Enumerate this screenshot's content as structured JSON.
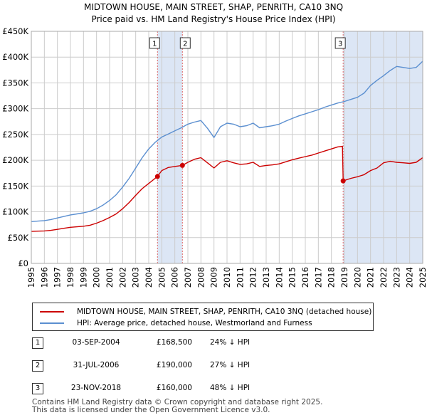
{
  "title": {
    "line1": "MIDTOWN HOUSE, MAIN STREET, SHAP, PENRITH, CA10 3NQ",
    "line2": "Price paid vs. HM Land Registry's House Price Index (HPI)"
  },
  "colors": {
    "price_paid": "#cc0000",
    "hpi": "#5b8fd0",
    "shade": "#dce6f5",
    "vline": "#dd6666",
    "grid": "#cccccc"
  },
  "chart_data": {
    "type": "line",
    "title": "Price paid vs. HM Land Registry's House Price Index (HPI)",
    "xlim": [
      1995,
      2025
    ],
    "ylim": [
      0,
      450000
    ],
    "x_ticks": [
      "1995",
      "1996",
      "1997",
      "1998",
      "1999",
      "2000",
      "2001",
      "2002",
      "2003",
      "2004",
      "2005",
      "2006",
      "2007",
      "2008",
      "2009",
      "2010",
      "2011",
      "2012",
      "2013",
      "2014",
      "2015",
      "2016",
      "2017",
      "2018",
      "2019",
      "2020",
      "2021",
      "2022",
      "2023",
      "2024",
      "2025"
    ],
    "y_ticks": [
      {
        "value": 0,
        "label": "£0"
      },
      {
        "value": 50000,
        "label": "£50K"
      },
      {
        "value": 100000,
        "label": "£100K"
      },
      {
        "value": 150000,
        "label": "£150K"
      },
      {
        "value": 200000,
        "label": "£200K"
      },
      {
        "value": 250000,
        "label": "£250K"
      },
      {
        "value": 300000,
        "label": "£300K"
      },
      {
        "value": 350000,
        "label": "£350K"
      },
      {
        "value": 400000,
        "label": "£400K"
      },
      {
        "value": 450000,
        "label": "£450K"
      }
    ],
    "series": [
      {
        "name": "MIDTOWN HOUSE, MAIN STREET, SHAP, PENRITH, CA10 3NQ (detached house)",
        "x": [
          1995.0,
          1995.5,
          1996.0,
          1996.5,
          1997.0,
          1997.5,
          1998.0,
          1998.5,
          1999.0,
          1999.5,
          2000.0,
          2000.5,
          2001.0,
          2001.5,
          2002.0,
          2002.5,
          2003.0,
          2003.5,
          2004.0,
          2004.67,
          2005.0,
          2005.5,
          2006.0,
          2006.58,
          2007.0,
          2007.5,
          2008.0,
          2008.5,
          2009.0,
          2009.5,
          2010.0,
          2010.5,
          2011.0,
          2011.5,
          2012.0,
          2012.5,
          2013.0,
          2013.5,
          2014.0,
          2014.5,
          2015.0,
          2015.5,
          2016.0,
          2016.5,
          2017.0,
          2017.5,
          2018.0,
          2018.5,
          2018.85,
          2018.9,
          2019.5,
          2020.0,
          2020.5,
          2021.0,
          2021.5,
          2022.0,
          2022.5,
          2023.0,
          2023.5,
          2024.0,
          2024.5,
          2025.0
        ],
        "values": [
          62000,
          62500,
          63000,
          64000,
          66000,
          68000,
          70000,
          71000,
          72000,
          74000,
          78000,
          83000,
          89000,
          96000,
          106000,
          118000,
          132000,
          145000,
          155000,
          168500,
          180000,
          186000,
          188000,
          190000,
          196000,
          202000,
          205000,
          195000,
          185000,
          196000,
          199000,
          195000,
          192000,
          193000,
          196000,
          188000,
          190000,
          191000,
          193000,
          197000,
          201000,
          204000,
          207000,
          210000,
          214000,
          218000,
          222000,
          226000,
          227000,
          160000,
          165000,
          168000,
          172000,
          180000,
          185000,
          195000,
          198000,
          196000,
          195000,
          194000,
          196000,
          205000
        ]
      },
      {
        "name": "HPI: Average price, detached house, Westmorland and Furness",
        "x": [
          1995.0,
          1995.5,
          1996.0,
          1996.5,
          1997.0,
          1997.5,
          1998.0,
          1998.5,
          1999.0,
          1999.5,
          2000.0,
          2000.5,
          2001.0,
          2001.5,
          2002.0,
          2002.5,
          2003.0,
          2003.5,
          2004.0,
          2004.5,
          2005.0,
          2005.5,
          2006.0,
          2006.5,
          2007.0,
          2007.5,
          2008.0,
          2008.5,
          2009.0,
          2009.5,
          2010.0,
          2010.5,
          2011.0,
          2011.5,
          2012.0,
          2012.5,
          2013.0,
          2013.5,
          2014.0,
          2014.5,
          2015.0,
          2015.5,
          2016.0,
          2016.5,
          2017.0,
          2017.5,
          2018.0,
          2018.5,
          2019.0,
          2019.5,
          2020.0,
          2020.5,
          2021.0,
          2021.5,
          2022.0,
          2022.5,
          2023.0,
          2023.5,
          2024.0,
          2024.5,
          2025.0
        ],
        "values": [
          81000,
          82000,
          83000,
          85000,
          88000,
          91000,
          94000,
          96000,
          98000,
          101000,
          106000,
          113000,
          122000,
          133000,
          148000,
          165000,
          185000,
          205000,
          222000,
          235000,
          245000,
          251000,
          257000,
          263000,
          270000,
          274000,
          277000,
          262000,
          244000,
          265000,
          272000,
          270000,
          265000,
          267000,
          272000,
          263000,
          265000,
          267000,
          270000,
          276000,
          281000,
          286000,
          290000,
          294000,
          298000,
          303000,
          307000,
          311000,
          314000,
          318000,
          322000,
          330000,
          345000,
          355000,
          364000,
          374000,
          382000,
          380000,
          378000,
          380000,
          392000
        ]
      }
    ],
    "sales": [
      {
        "label": "1",
        "date": "03-SEP-2004",
        "price": "£168,500",
        "hpi": "24% ↓ HPI",
        "x": 2004.67,
        "value": 168500
      },
      {
        "label": "2",
        "date": "31-JUL-2006",
        "price": "£190,000",
        "hpi": "27% ↓ HPI",
        "x": 2006.58,
        "value": 190000
      },
      {
        "label": "3",
        "date": "23-NOV-2018",
        "price": "£160,000",
        "hpi": "48% ↓ HPI",
        "x": 2018.9,
        "value": 160000
      }
    ],
    "shaded_ranges": [
      [
        2004.67,
        2006.58
      ],
      [
        2018.9,
        2025.0
      ]
    ]
  },
  "legend": {
    "price_paid": "MIDTOWN HOUSE, MAIN STREET, SHAP, PENRITH, CA10 3NQ (detached house)",
    "hpi": "HPI: Average price, detached house, Westmorland and Furness"
  },
  "footer": {
    "line1": "Contains HM Land Registry data © Crown copyright and database right 2025.",
    "line2": "This data is licensed under the Open Government Licence v3.0."
  }
}
